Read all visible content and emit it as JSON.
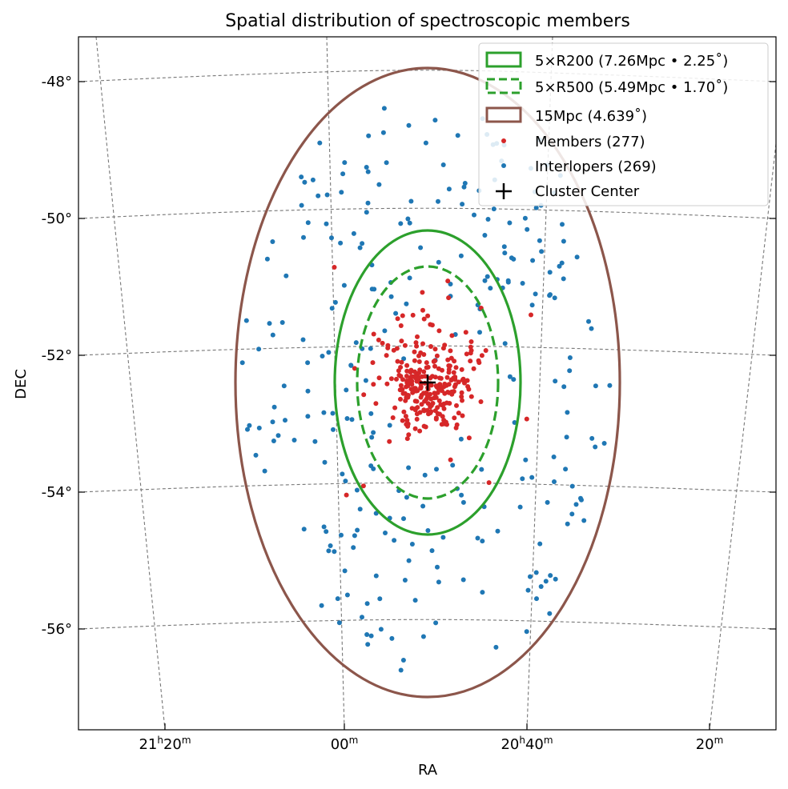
{
  "chart_data": {
    "type": "scatter",
    "title": "Spatial distribution of spectroscopic members",
    "xlabel": "RA",
    "ylabel": "DEC",
    "projection": "sky (RA/DEC world-coordinate grid, dashed graticule)",
    "grid": true,
    "ra_ticks": [
      {
        "main": "21",
        "sup1": "h",
        "min": "20",
        "sup2": "m"
      },
      {
        "main": "",
        "sup1": "",
        "min": "00",
        "sup2": "m"
      },
      {
        "main": "20",
        "sup1": "h",
        "min": "40",
        "sup2": "m"
      },
      {
        "main": "",
        "sup1": "",
        "min": "20",
        "sup2": "m"
      }
    ],
    "dec_ticks": [
      "-48°",
      "-50°",
      "-52°",
      "-54°",
      "-56°"
    ],
    "dec_values": [
      -48,
      -50,
      -52,
      -54,
      -56
    ],
    "cluster_center": {
      "ra_deg": 311.2,
      "dec_deg": -52.4
    },
    "circles": [
      {
        "label": "5×R200 (7.26Mpc • 2.25$^\\circ$)",
        "display": "5×R200 (7.26Mpc • 2.25˚)",
        "radius_deg": 2.25,
        "color": "#2ca02c",
        "style": "solid"
      },
      {
        "label": "5×R500 (5.49Mpc • 1.70$^\\circ$)",
        "display": "5×R500 (5.49Mpc • 1.70˚)",
        "radius_deg": 1.7,
        "color": "#2ca02c",
        "style": "dashed"
      },
      {
        "label": "15Mpc (4.639$^\\circ$)",
        "display": "15Mpc (4.639˚)",
        "radius_deg": 4.639,
        "color": "#8c564b",
        "style": "solid"
      }
    ],
    "series": [
      {
        "name": "Members (277)",
        "color": "#d62728",
        "count": 277,
        "note": "concentrated within ~1 deg of center"
      },
      {
        "name": "Interlopers (269)",
        "color": "#1f77b4",
        "count": 269,
        "note": "spread over ~5 deg field"
      }
    ],
    "center_marker": {
      "name": "Cluster Center",
      "symbol": "+",
      "color": "#000000"
    },
    "legend_position": "top-right"
  }
}
